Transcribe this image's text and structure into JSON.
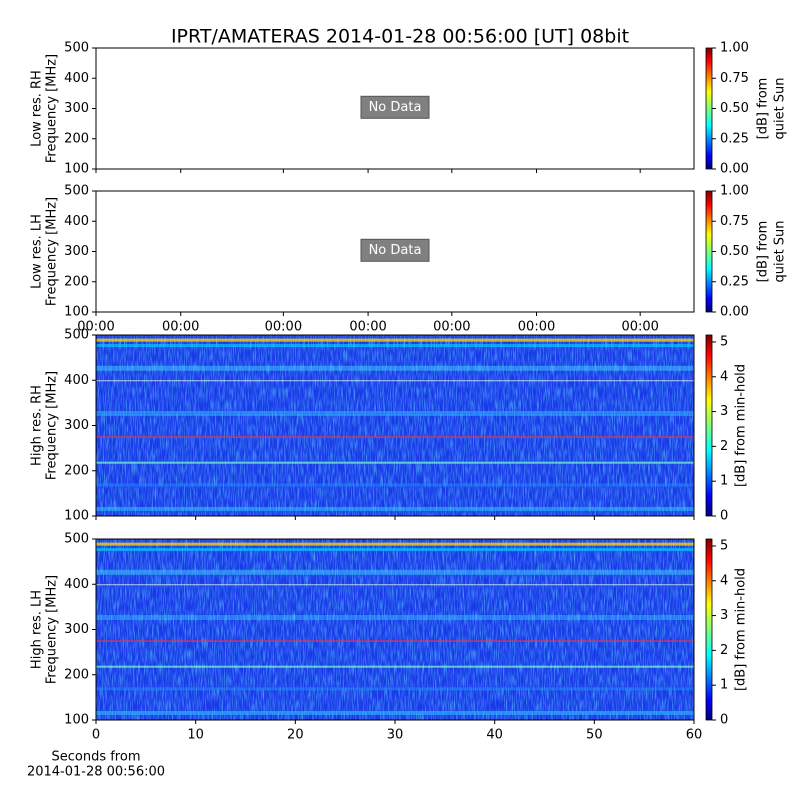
{
  "title": "IPRT/AMATERAS 2014-01-28 00:56:00 [UT]   08bit",
  "xlabel": [
    "Seconds from",
    "2014-01-28 00:56:00"
  ],
  "chart_data": [
    {
      "type": "spectrogram",
      "ylabel": [
        "Low res. RH",
        "Frequency [MHz]"
      ],
      "ylim": [
        100,
        500
      ],
      "yticks": [
        100,
        200,
        300,
        400,
        500
      ],
      "xlim": [
        0,
        60
      ],
      "no_data": "No Data",
      "colorbar_label": [
        "[dB] from",
        "quiet Sun"
      ],
      "clim": [
        0,
        1
      ],
      "cticks": [
        {
          "value": 0,
          "label": "0.00"
        },
        {
          "value": 0.25,
          "label": "0.25"
        },
        {
          "value": 0.5,
          "label": "0.50"
        },
        {
          "value": 0.75,
          "label": "0.75"
        },
        {
          "value": 1,
          "label": "1.00"
        }
      ]
    },
    {
      "type": "spectrogram",
      "ylabel": [
        "Low res. LH",
        "Frequency [MHz]"
      ],
      "ylim": [
        100,
        500
      ],
      "yticks": [
        100,
        200,
        300,
        400,
        500
      ],
      "xlim": [
        0,
        60
      ],
      "xticks": [
        {
          "value": 0,
          "label": "00:00"
        },
        {
          "value": 8.5,
          "label": "00:00"
        },
        {
          "value": 18.8,
          "label": "00:00"
        },
        {
          "value": 27.3,
          "label": "00:00"
        },
        {
          "value": 35.7,
          "label": "00:00"
        },
        {
          "value": 44.2,
          "label": "00:00"
        },
        {
          "value": 54.6,
          "label": "00:00"
        }
      ],
      "no_data": "No Data",
      "colorbar_label": [
        "[dB] from",
        "quiet Sun"
      ],
      "clim": [
        0,
        1
      ],
      "cticks": [
        {
          "value": 0,
          "label": "0.00"
        },
        {
          "value": 0.25,
          "label": "0.25"
        },
        {
          "value": 0.5,
          "label": "0.50"
        },
        {
          "value": 0.75,
          "label": "0.75"
        },
        {
          "value": 1,
          "label": "1.00"
        }
      ]
    },
    {
      "type": "spectrogram",
      "ylabel": [
        "High res. RH",
        "Frequency [MHz]"
      ],
      "ylim": [
        100,
        500
      ],
      "yticks": [
        100,
        200,
        300,
        400,
        500
      ],
      "xlim": [
        0,
        60
      ],
      "colorbar_label": [
        "[dB] from min-hold"
      ],
      "clim": [
        0,
        5.2
      ],
      "cticks": [
        0,
        1,
        2,
        3,
        4,
        5
      ]
    },
    {
      "type": "spectrogram",
      "ylabel": [
        "High res. LH",
        "Frequency [MHz]"
      ],
      "ylim": [
        100,
        500
      ],
      "yticks": [
        100,
        200,
        300,
        400,
        500
      ],
      "xlim": [
        0,
        60
      ],
      "xticks": [
        0,
        10,
        20,
        30,
        40,
        50,
        60
      ],
      "colorbar_label": [
        "[dB] from min-hold"
      ],
      "clim": [
        0,
        5.2
      ],
      "cticks": [
        0,
        1,
        2,
        3,
        4,
        5
      ]
    }
  ]
}
